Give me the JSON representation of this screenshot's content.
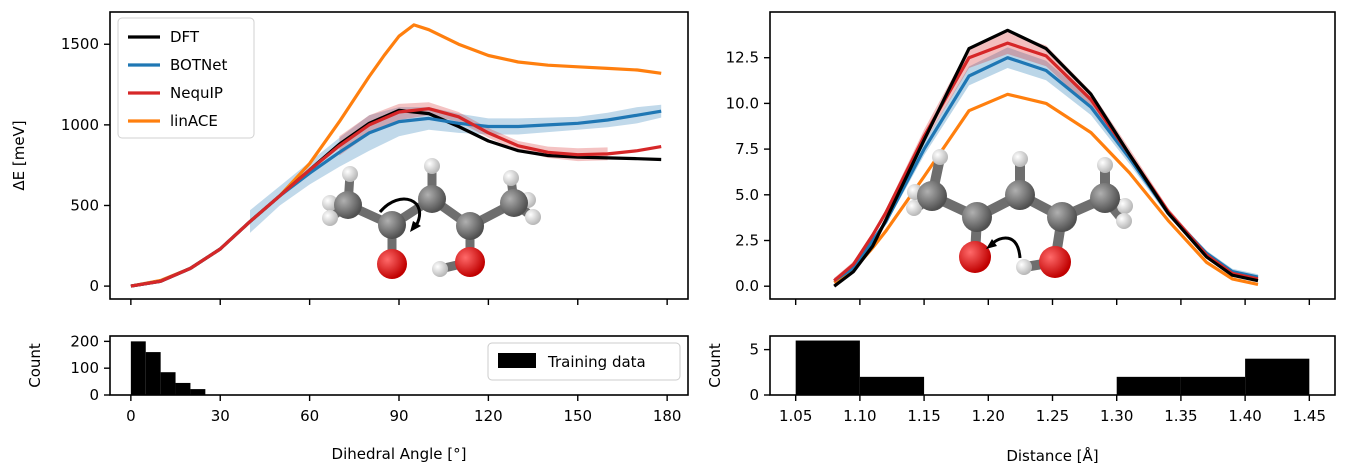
{
  "chart_data": [
    {
      "type": "line",
      "panel": "dihedral-energy",
      "xlabel": "",
      "ylabel": "ΔE [meV]",
      "xlim": [
        -7,
        187
      ],
      "ylim": [
        -80,
        1700
      ],
      "yticks": [
        0,
        500,
        1000,
        1500
      ],
      "grid": false,
      "legend": "top-left",
      "series": [
        {
          "name": "DFT",
          "color": "#000000",
          "x": [
            0,
            10,
            20,
            30,
            40,
            50,
            60,
            70,
            80,
            90,
            100,
            110,
            120,
            130,
            140,
            150,
            160,
            170,
            178
          ],
          "y": [
            0,
            30,
            110,
            230,
            400,
            560,
            720,
            880,
            1010,
            1090,
            1070,
            990,
            900,
            840,
            810,
            800,
            795,
            790,
            785
          ]
        },
        {
          "name": "BOTNet",
          "color": "#1f77b4",
          "x": [
            0,
            10,
            20,
            30,
            40,
            50,
            60,
            70,
            80,
            90,
            100,
            110,
            120,
            130,
            140,
            150,
            160,
            170,
            178
          ],
          "y": [
            0,
            30,
            110,
            230,
            400,
            560,
            700,
            830,
            950,
            1020,
            1040,
            1010,
            990,
            990,
            1000,
            1010,
            1030,
            1060,
            1085
          ],
          "band": [
            70,
            60,
            70,
            90,
            110,
            90,
            70,
            60,
            50,
            50,
            45,
            40,
            45,
            50,
            40
          ]
        },
        {
          "name": "NequIP",
          "color": "#d62728",
          "x": [
            0,
            10,
            20,
            30,
            40,
            50,
            60,
            70,
            80,
            90,
            100,
            110,
            120,
            130,
            140,
            150,
            160,
            170,
            178
          ],
          "y": [
            0,
            30,
            110,
            230,
            400,
            560,
            720,
            870,
            1000,
            1080,
            1100,
            1050,
            950,
            870,
            830,
            815,
            820,
            840,
            865
          ],
          "band": [
            60,
            60,
            50,
            40,
            30,
            30,
            30,
            35,
            40,
            40
          ]
        },
        {
          "name": "linACE",
          "color": "#ff7f0e",
          "x": [
            0,
            10,
            20,
            30,
            40,
            50,
            60,
            70,
            80,
            85,
            90,
            95,
            100,
            110,
            120,
            130,
            140,
            150,
            160,
            170,
            178
          ],
          "y": [
            0,
            35,
            110,
            230,
            400,
            560,
            760,
            1020,
            1300,
            1430,
            1550,
            1620,
            1590,
            1500,
            1430,
            1390,
            1370,
            1360,
            1350,
            1340,
            1320
          ]
        }
      ]
    },
    {
      "type": "line",
      "panel": "distance-energy",
      "xlabel": "",
      "ylabel": "",
      "xlim": [
        1.03,
        1.47
      ],
      "ylim": [
        -0.7,
        15
      ],
      "yticks": [
        "0.0",
        "2.5",
        "5.0",
        "7.5",
        "10.0",
        "12.5"
      ],
      "grid": false,
      "series": [
        {
          "name": "DFT",
          "color": "#000000",
          "x": [
            1.08,
            1.095,
            1.11,
            1.12,
            1.15,
            1.185,
            1.215,
            1.245,
            1.28,
            1.31,
            1.34,
            1.37,
            1.39,
            1.41
          ],
          "y": [
            0.0,
            0.8,
            2.2,
            3.6,
            8.0,
            13.0,
            14.0,
            13.0,
            10.5,
            7.2,
            4.0,
            1.6,
            0.6,
            0.3
          ]
        },
        {
          "name": "BOTNet",
          "color": "#1f77b4",
          "x": [
            1.08,
            1.095,
            1.11,
            1.12,
            1.15,
            1.185,
            1.215,
            1.245,
            1.28,
            1.31,
            1.34,
            1.37,
            1.39,
            1.41
          ],
          "y": [
            0.3,
            1.0,
            2.5,
            3.5,
            7.5,
            11.5,
            12.5,
            11.8,
            9.8,
            7.0,
            4.0,
            1.8,
            0.8,
            0.5
          ]
        },
        {
          "name": "NequIP",
          "color": "#d62728",
          "x": [
            1.08,
            1.095,
            1.11,
            1.12,
            1.15,
            1.185,
            1.215,
            1.245,
            1.28,
            1.31,
            1.34,
            1.37,
            1.39,
            1.41
          ],
          "y": [
            0.3,
            1.2,
            2.8,
            4.0,
            8.2,
            12.5,
            13.3,
            12.6,
            10.2,
            7.2,
            4.1,
            1.7,
            0.7,
            0.4
          ]
        },
        {
          "name": "linACE",
          "color": "#ff7f0e",
          "x": [
            1.08,
            1.095,
            1.11,
            1.12,
            1.15,
            1.185,
            1.215,
            1.245,
            1.28,
            1.31,
            1.34,
            1.37,
            1.39,
            1.41
          ],
          "y": [
            0.2,
            0.9,
            2.1,
            3.0,
            6.0,
            9.6,
            10.5,
            10.0,
            8.4,
            6.2,
            3.6,
            1.3,
            0.4,
            0.1
          ]
        }
      ]
    },
    {
      "type": "bar",
      "panel": "dihedral-histogram",
      "xlabel": "Dihedral Angle [°]",
      "ylabel": "Count",
      "xlim": [
        -7,
        187
      ],
      "ylim": [
        0,
        220
      ],
      "xticks": [
        0,
        30,
        60,
        90,
        120,
        150,
        180
      ],
      "yticks": [
        0,
        100,
        200
      ],
      "legend": "top-right",
      "series": [
        {
          "name": "Training data",
          "color": "#000000"
        }
      ],
      "bins": [
        [
          0,
          5,
          200
        ],
        [
          5,
          10,
          160
        ],
        [
          10,
          15,
          85
        ],
        [
          15,
          20,
          45
        ],
        [
          20,
          25,
          22
        ]
      ]
    },
    {
      "type": "bar",
      "panel": "distance-histogram",
      "xlabel": "Distance [Å]",
      "ylabel": "Count",
      "xlim": [
        1.03,
        1.47
      ],
      "ylim": [
        0,
        6.5
      ],
      "xticks": [
        "1.05",
        "1.10",
        "1.15",
        "1.20",
        "1.25",
        "1.30",
        "1.35",
        "1.40",
        "1.45"
      ],
      "yticks": [
        0,
        5
      ],
      "bins": [
        [
          1.05,
          1.1,
          6
        ],
        [
          1.1,
          1.15,
          2
        ],
        [
          1.3,
          1.35,
          2
        ],
        [
          1.35,
          1.4,
          2
        ],
        [
          1.4,
          1.45,
          4
        ]
      ]
    }
  ]
}
